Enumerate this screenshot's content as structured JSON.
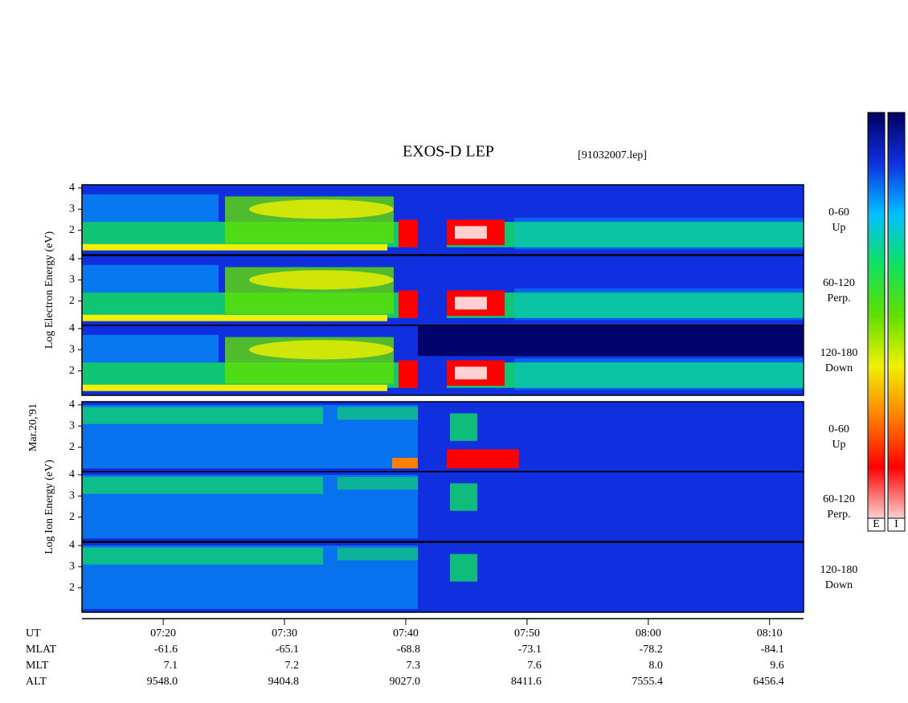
{
  "chart_data": {
    "type": "spectrogram",
    "title": "EXOS-D LEP",
    "subtitle": "[91032007.lep]",
    "date": "Mar.20,'91",
    "groups": [
      {
        "ylabel": "Log Electron Energy (eV)",
        "panels": [
          {
            "label": [
              "0-60",
              "Up"
            ]
          },
          {
            "label": [
              "60-120",
              "Perp."
            ]
          },
          {
            "label": [
              "120-180",
              "Down"
            ]
          }
        ]
      },
      {
        "ylabel": "Log Ion Energy (eV)",
        "panels": [
          {
            "label": [
              "0-60",
              "Up"
            ]
          },
          {
            "label": [
              "60-120",
              "Perp."
            ]
          },
          {
            "label": [
              "120-180",
              "Down"
            ]
          }
        ]
      }
    ],
    "ylim": [
      0.85,
      4.15
    ],
    "yticks": [
      2,
      3,
      4
    ],
    "xlim": [
      433.3,
      492.8
    ],
    "xticks": [
      {
        "value": 440,
        "label": "07:20"
      },
      {
        "value": 450,
        "label": "07:30"
      },
      {
        "value": 460,
        "label": "07:40"
      },
      {
        "value": 470,
        "label": "07:50"
      },
      {
        "value": 480,
        "label": "08:00"
      },
      {
        "value": 490,
        "label": "08:10"
      }
    ],
    "xaxis_label": "UT",
    "table": {
      "rows": [
        {
          "name": "MLAT",
          "values": [
            "-61.6",
            "-65.1",
            "-68.8",
            "-73.1",
            "-78.2",
            "-84.1"
          ]
        },
        {
          "name": "MLT",
          "values": [
            "7.1",
            "7.2",
            "7.3",
            "7.6",
            "8.0",
            "9.6"
          ]
        },
        {
          "name": "ALT",
          "values": [
            "9548.0",
            "9404.8",
            "9027.0",
            "8411.6",
            "7555.4",
            "6456.4"
          ]
        }
      ]
    },
    "colormap": [
      "#000060",
      "#1030e0",
      "#00c0ff",
      "#10e060",
      "#60e000",
      "#f0f000",
      "#ff8000",
      "#ff0000",
      "#ffd0d0"
    ],
    "colorbars": [
      {
        "label": "E"
      },
      {
        "label": "I"
      }
    ]
  }
}
